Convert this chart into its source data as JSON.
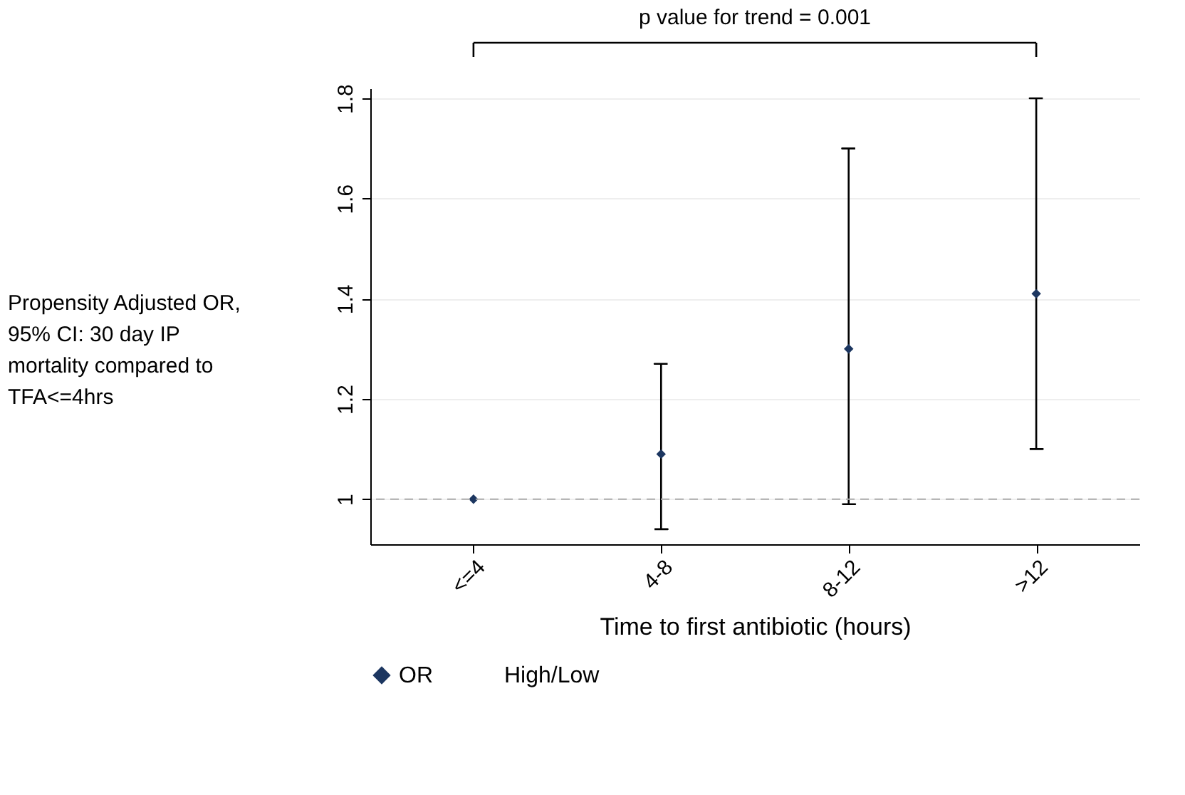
{
  "chart_data": {
    "type": "scatter",
    "xlabel": "Time to first antibiotic (hours)",
    "ylabel": "Propensity Adjusted OR, 95% CI: 30 day IP mortality compared to TFA<=4hrs",
    "categories": [
      "<=4",
      "4-8",
      "8-12",
      ">12"
    ],
    "series": [
      {
        "name": "OR",
        "color": "#1c3660",
        "values": [
          1.0,
          1.09,
          1.3,
          1.41
        ],
        "errors": [
          null,
          [
            0.94,
            1.27
          ],
          [
            0.99,
            1.7
          ],
          [
            1.1,
            1.8
          ]
        ]
      }
    ],
    "ylim": [
      0.91,
      1.82
    ],
    "yticks": [
      1,
      1.2,
      1.4,
      1.6,
      1.8
    ],
    "ref_lines": [
      {
        "axis": "y",
        "value": 1,
        "color": "#aaaaaa",
        "line_style": "dashed"
      }
    ],
    "annotations": [
      "p value for trend = 0.001",
      "High/Low"
    ],
    "grid": "y",
    "legend": "bottom",
    "marker": "diamond"
  }
}
